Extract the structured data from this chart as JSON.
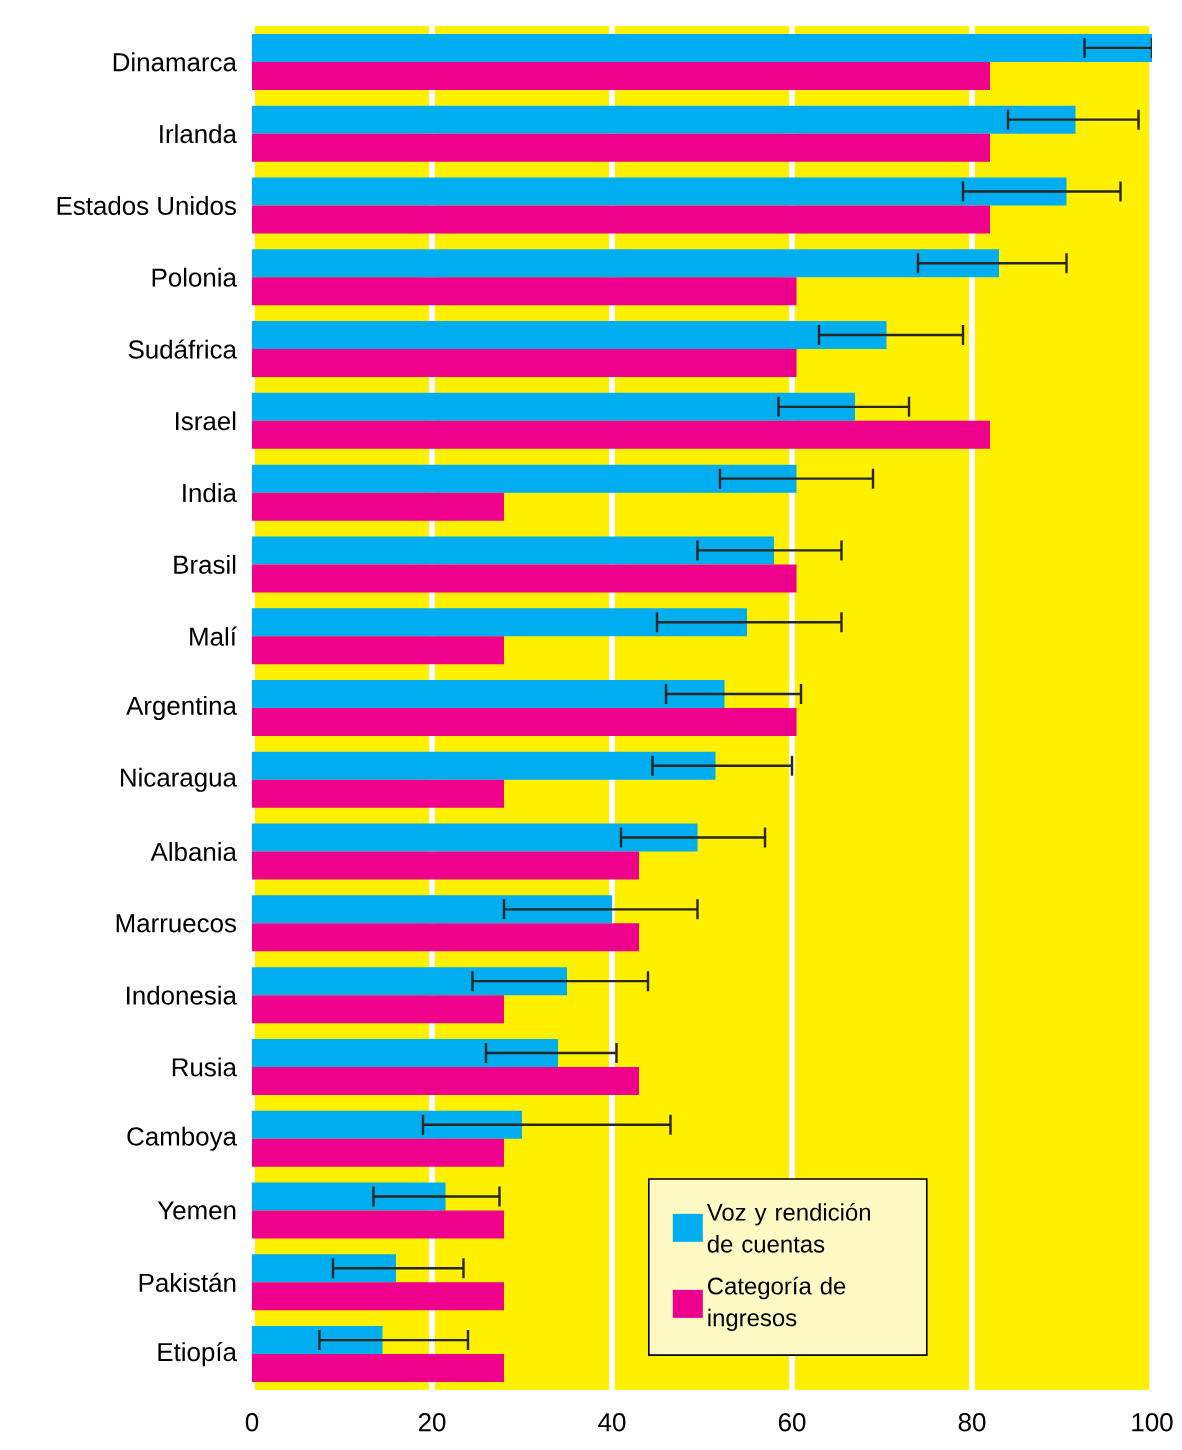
{
  "chart_data": {
    "type": "bar",
    "orientation": "horizontal",
    "categories": [
      "Dinamarca",
      "Irlanda",
      "Estados Unidos",
      "Polonia",
      "Sudáfrica",
      "Israel",
      "India",
      "Brasil",
      "Malí",
      "Argentina",
      "Nicaragua",
      "Albania",
      "Marruecos",
      "Indonesia",
      "Rusia",
      "Camboya",
      "Yemen",
      "Pakistán",
      "Etiopía"
    ],
    "series": [
      {
        "name": "Voz y rendición de cuentas",
        "color": "#00aeef",
        "values": [
          100,
          91.5,
          90.5,
          83,
          70.5,
          67,
          60.5,
          58,
          55,
          52.5,
          51.5,
          49.5,
          40,
          35,
          34,
          30,
          21.5,
          16,
          14.5
        ],
        "errors": [
          [
            92.5,
            100
          ],
          [
            84,
            98.5
          ],
          [
            79,
            96.5
          ],
          [
            74,
            90.5
          ],
          [
            63,
            79
          ],
          [
            58.5,
            73
          ],
          [
            52,
            69
          ],
          [
            49.5,
            65.5
          ],
          [
            45,
            65.5
          ],
          [
            46,
            61
          ],
          [
            44.5,
            60
          ],
          [
            41,
            57
          ],
          [
            28,
            49.5
          ],
          [
            24.5,
            44
          ],
          [
            26,
            40.5
          ],
          [
            19,
            46.5
          ],
          [
            13.5,
            27.5
          ],
          [
            9,
            23.5
          ],
          [
            7.5,
            24
          ]
        ]
      },
      {
        "name": "Categoría de ingresos",
        "color": "#ec008c",
        "values": [
          82,
          82,
          82,
          60.5,
          60.5,
          82,
          28,
          60.5,
          28,
          60.5,
          28,
          43,
          43,
          28,
          43,
          28,
          28,
          28,
          28
        ]
      }
    ],
    "xlim": [
      0,
      100
    ],
    "xticks": [
      0,
      20,
      40,
      60,
      80,
      100
    ],
    "grid": "x",
    "legend": "bottom right"
  }
}
